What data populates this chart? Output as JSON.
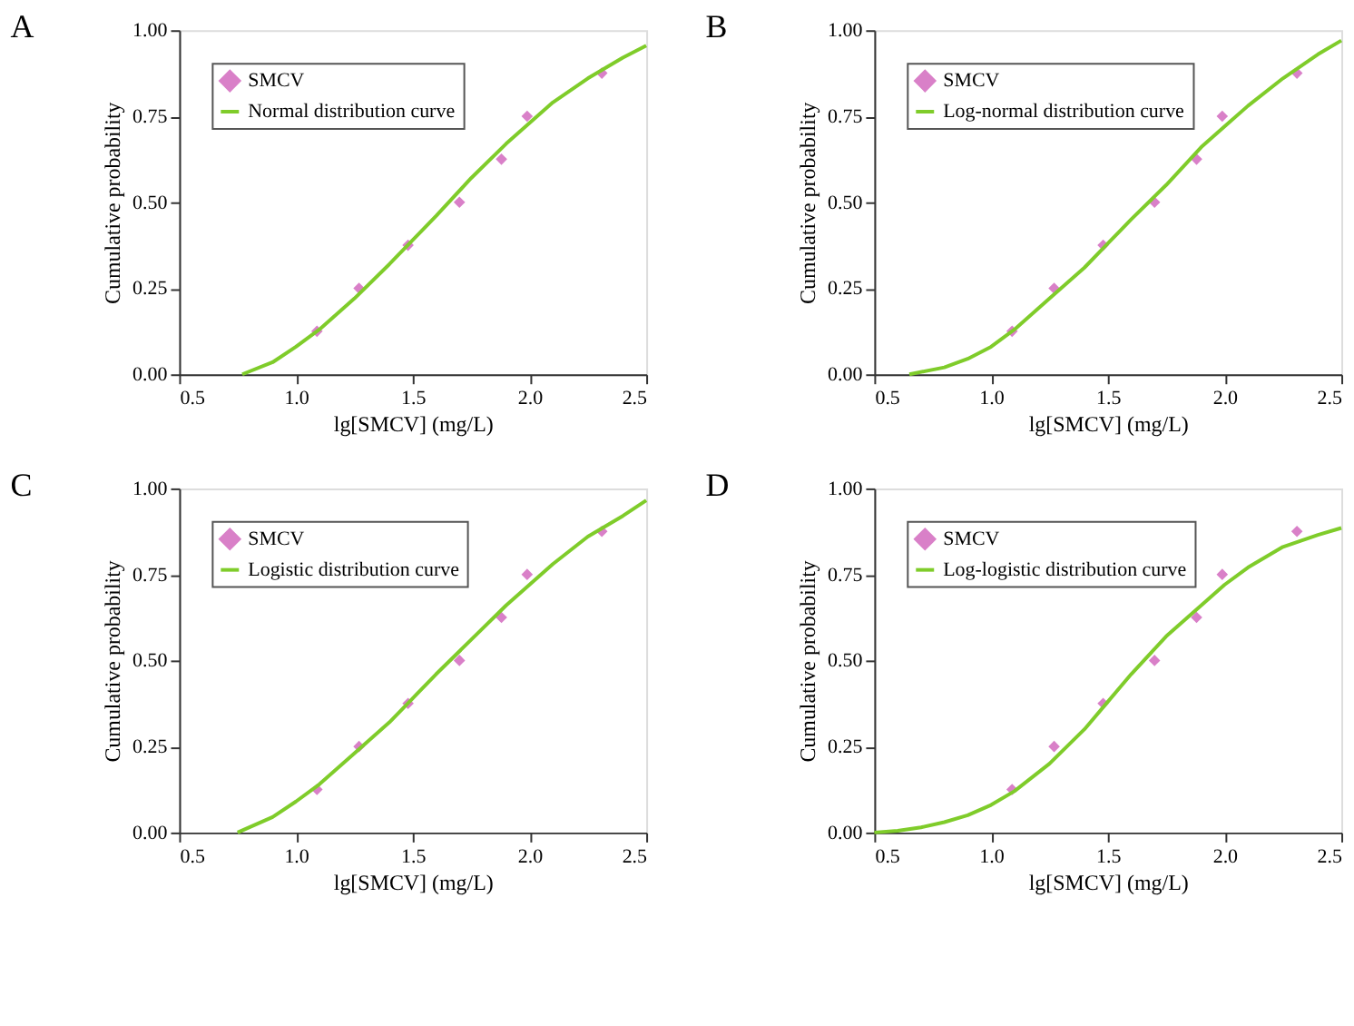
{
  "chart_data": [
    {
      "type": "scatter",
      "title": "A",
      "xlabel": "lg[SMCV] (mg/L)",
      "ylabel": "Cumulative probability",
      "xlim": [
        0.5,
        2.5
      ],
      "ylim": [
        0,
        1
      ],
      "xticks": [
        {
          "value": 0.5,
          "label": "0.5"
        },
        {
          "value": 1,
          "label": "1.0"
        },
        {
          "value": 1.5,
          "label": "1.5"
        },
        {
          "value": 2,
          "label": "2.0"
        },
        {
          "value": 2.5,
          "label": "2.5"
        }
      ],
      "yticks": [
        {
          "value": 0,
          "label": "0.00"
        },
        {
          "value": 0.25,
          "label": "0.25"
        },
        {
          "value": 0.5,
          "label": "0.50"
        },
        {
          "value": 0.75,
          "label": "0.75"
        },
        {
          "value": 1,
          "label": "1.00"
        }
      ],
      "grid": false,
      "legend": "top left",
      "series": [
        {
          "name": "SMCV",
          "marker": "diamond",
          "color": "#d980c8",
          "x": [
            1.09,
            1.27,
            1.48,
            1.7,
            1.88,
            1.99,
            2.31
          ],
          "values": [
            0.125,
            0.25,
            0.375,
            0.5,
            0.625,
            0.75,
            0.875
          ]
        },
        {
          "name": "Normal distribution curve",
          "type": "line",
          "line_style": "solid",
          "color": "#7fcc2a",
          "x": [
            0.77,
            0.9,
            1.0,
            1.1,
            1.25,
            1.4,
            1.5,
            1.6,
            1.75,
            1.9,
            2.0,
            2.1,
            2.25,
            2.4,
            2.5
          ],
          "values": [
            0,
            0.035,
            0.08,
            0.13,
            0.22,
            0.32,
            0.39,
            0.46,
            0.57,
            0.67,
            0.73,
            0.79,
            0.86,
            0.92,
            0.955
          ]
        }
      ]
    },
    {
      "type": "scatter",
      "title": "B",
      "xlabel": "lg[SMCV] (mg/L)",
      "ylabel": "Cumulative probability",
      "xlim": [
        0.5,
        2.5
      ],
      "ylim": [
        0,
        1
      ],
      "xticks": [
        {
          "value": 0.5,
          "label": "0.5"
        },
        {
          "value": 1,
          "label": "1.0"
        },
        {
          "value": 1.5,
          "label": "1.5"
        },
        {
          "value": 2,
          "label": "2.0"
        },
        {
          "value": 2.5,
          "label": "2.5"
        }
      ],
      "yticks": [
        {
          "value": 0,
          "label": "0.00"
        },
        {
          "value": 0.25,
          "label": "0.25"
        },
        {
          "value": 0.5,
          "label": "0.50"
        },
        {
          "value": 0.75,
          "label": "0.75"
        },
        {
          "value": 1,
          "label": "1.00"
        }
      ],
      "grid": false,
      "legend": "top left",
      "series": [
        {
          "name": "SMCV",
          "marker": "diamond",
          "color": "#d980c8",
          "x": [
            1.09,
            1.27,
            1.48,
            1.7,
            1.88,
            1.99,
            2.31
          ],
          "values": [
            0.125,
            0.25,
            0.375,
            0.5,
            0.625,
            0.75,
            0.875
          ]
        },
        {
          "name": "Log-normal distribution curve",
          "type": "line",
          "line_style": "solid",
          "color": "#7fcc2a",
          "x": [
            0.65,
            0.8,
            0.9,
            1.0,
            1.1,
            1.25,
            1.4,
            1.5,
            1.6,
            1.75,
            1.9,
            2.0,
            2.1,
            2.25,
            2.4,
            2.5
          ],
          "values": [
            0,
            0.02,
            0.045,
            0.08,
            0.13,
            0.22,
            0.31,
            0.38,
            0.45,
            0.55,
            0.66,
            0.72,
            0.78,
            0.86,
            0.93,
            0.97
          ]
        }
      ]
    },
    {
      "type": "scatter",
      "title": "C",
      "xlabel": "lg[SMCV] (mg/L)",
      "ylabel": "Cumulative probability",
      "xlim": [
        0.5,
        2.5
      ],
      "ylim": [
        0,
        1
      ],
      "xticks": [
        {
          "value": 0.5,
          "label": "0.5"
        },
        {
          "value": 1,
          "label": "1.0"
        },
        {
          "value": 1.5,
          "label": "1.5"
        },
        {
          "value": 2,
          "label": "2.0"
        },
        {
          "value": 2.5,
          "label": "2.5"
        }
      ],
      "yticks": [
        {
          "value": 0,
          "label": "0.00"
        },
        {
          "value": 0.25,
          "label": "0.25"
        },
        {
          "value": 0.5,
          "label": "0.50"
        },
        {
          "value": 0.75,
          "label": "0.75"
        },
        {
          "value": 1,
          "label": "1.00"
        }
      ],
      "grid": false,
      "legend": "top left",
      "series": [
        {
          "name": "SMCV",
          "marker": "diamond",
          "color": "#d980c8",
          "x": [
            1.09,
            1.27,
            1.48,
            1.7,
            1.88,
            1.99,
            2.31
          ],
          "values": [
            0.125,
            0.25,
            0.375,
            0.5,
            0.625,
            0.75,
            0.875
          ]
        },
        {
          "name": "Logistic distribution curve",
          "type": "line",
          "line_style": "solid",
          "color": "#7fcc2a",
          "x": [
            0.75,
            0.9,
            1.0,
            1.1,
            1.25,
            1.4,
            1.5,
            1.6,
            1.75,
            1.9,
            2.0,
            2.1,
            2.25,
            2.4,
            2.5
          ],
          "values": [
            0,
            0.045,
            0.09,
            0.14,
            0.23,
            0.32,
            0.39,
            0.46,
            0.56,
            0.66,
            0.72,
            0.78,
            0.86,
            0.92,
            0.965
          ]
        }
      ]
    },
    {
      "type": "scatter",
      "title": "D",
      "xlabel": "lg[SMCV] (mg/L)",
      "ylabel": "Cumulative probability",
      "xlim": [
        0.5,
        2.5
      ],
      "ylim": [
        0,
        1
      ],
      "xticks": [
        {
          "value": 0.5,
          "label": "0.5"
        },
        {
          "value": 1,
          "label": "1.0"
        },
        {
          "value": 1.5,
          "label": "1.5"
        },
        {
          "value": 2,
          "label": "2.0"
        },
        {
          "value": 2.5,
          "label": "2.5"
        }
      ],
      "yticks": [
        {
          "value": 0,
          "label": "0.00"
        },
        {
          "value": 0.25,
          "label": "0.25"
        },
        {
          "value": 0.5,
          "label": "0.50"
        },
        {
          "value": 0.75,
          "label": "0.75"
        },
        {
          "value": 1,
          "label": "1.00"
        }
      ],
      "grid": false,
      "legend": "top left",
      "series": [
        {
          "name": "SMCV",
          "marker": "diamond",
          "color": "#d980c8",
          "x": [
            1.09,
            1.27,
            1.48,
            1.7,
            1.88,
            1.99,
            2.31
          ],
          "values": [
            0.125,
            0.25,
            0.375,
            0.5,
            0.625,
            0.75,
            0.875
          ]
        },
        {
          "name": "Log-logistic distribution curve",
          "type": "line",
          "line_style": "solid",
          "color": "#7fcc2a",
          "x": [
            0.5,
            0.6,
            0.7,
            0.8,
            0.9,
            1.0,
            1.1,
            1.25,
            1.4,
            1.5,
            1.6,
            1.75,
            1.9,
            2.0,
            2.1,
            2.25,
            2.4,
            2.5
          ],
          "values": [
            0,
            0.005,
            0.015,
            0.03,
            0.05,
            0.08,
            0.12,
            0.2,
            0.3,
            0.38,
            0.46,
            0.57,
            0.66,
            0.72,
            0.77,
            0.83,
            0.865,
            0.885
          ]
        }
      ]
    }
  ]
}
